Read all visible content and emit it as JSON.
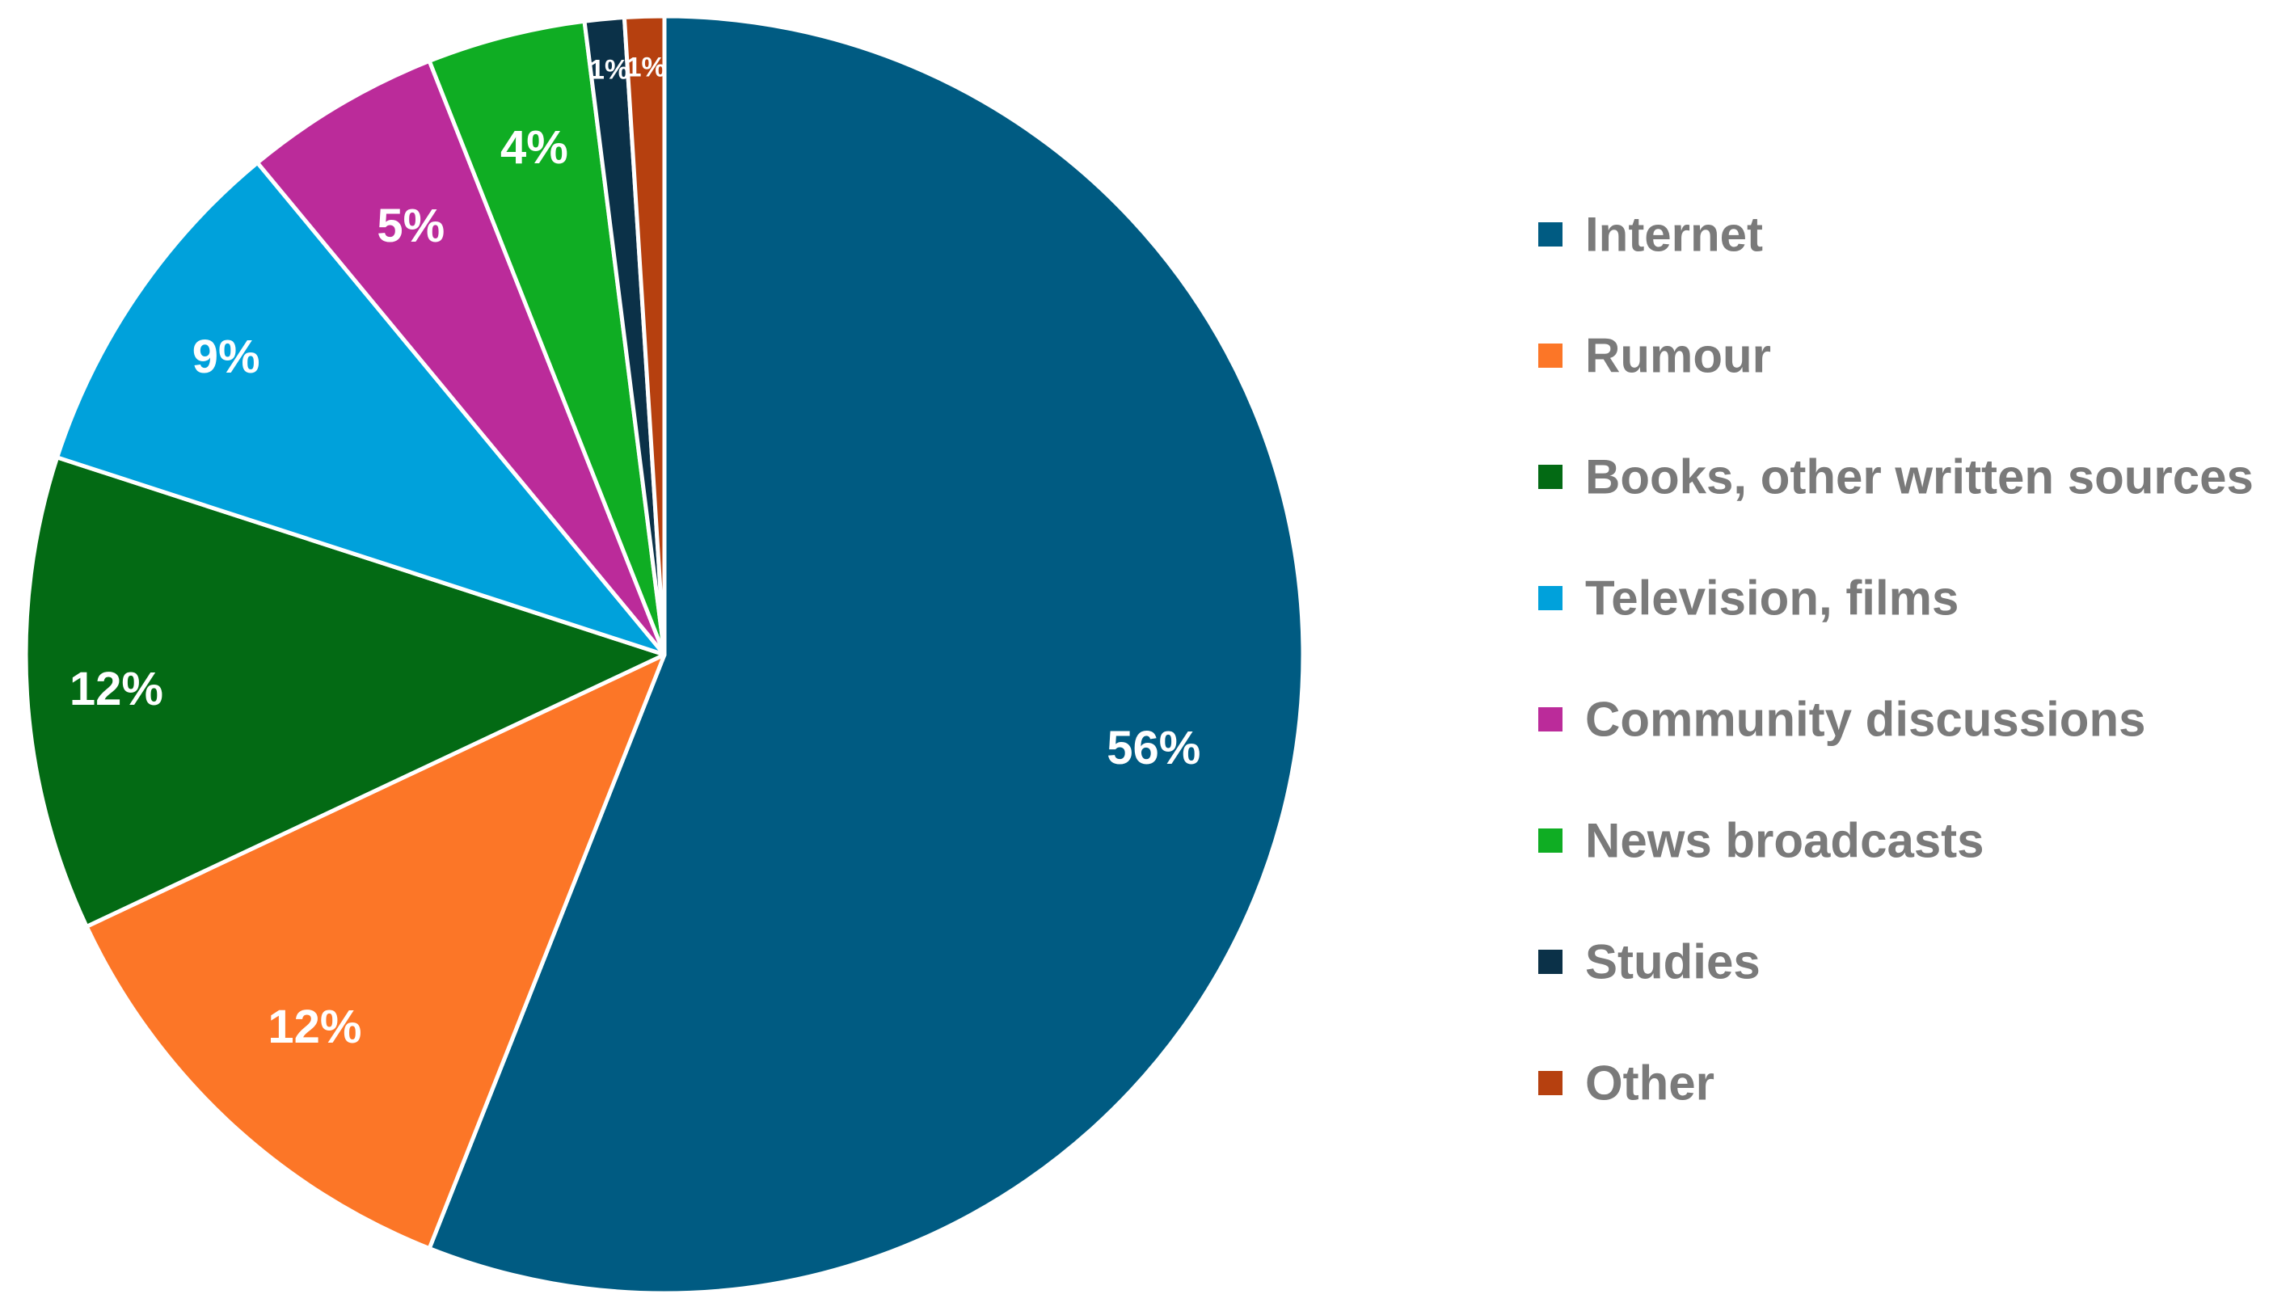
{
  "chart_data": {
    "type": "pie",
    "title": "",
    "categories": [
      "Internet",
      "Rumour",
      "Books, other written sources",
      "Television, films",
      "Community discussions",
      "News broadcasts",
      "Studies",
      "Other"
    ],
    "values": [
      56,
      12,
      12,
      9,
      5,
      4,
      1,
      1
    ],
    "data_labels": [
      "56%",
      "12%",
      "12%",
      "9%",
      "5%",
      "4%",
      "1%",
      "1%"
    ],
    "colors": [
      "#005b82",
      "#fc7627",
      "#036a14",
      "#00a1db",
      "#bb2b9a",
      "#0fad23",
      "#0b3148",
      "#b6400f"
    ],
    "start_angle_deg": 0,
    "direction": "clockwise",
    "legend_position": "right"
  }
}
